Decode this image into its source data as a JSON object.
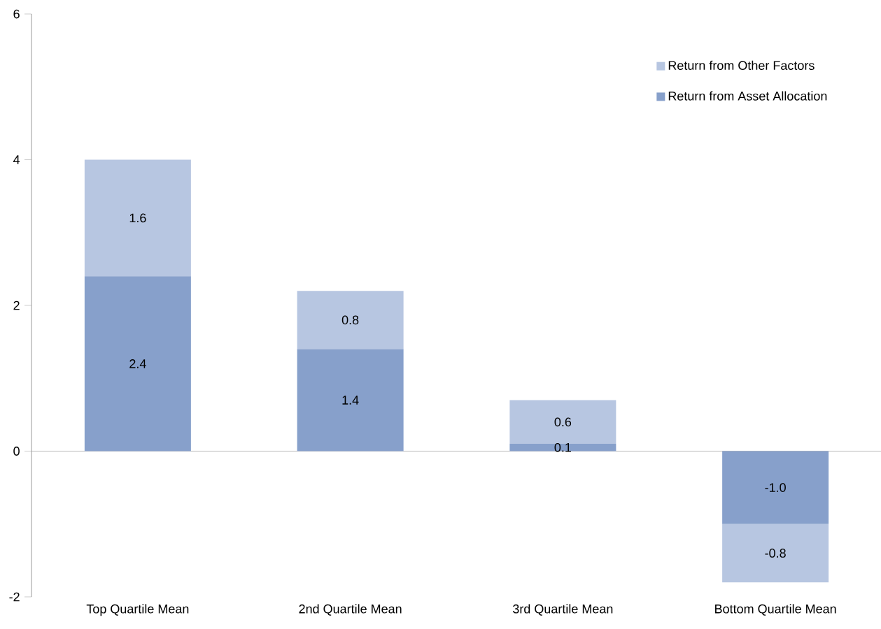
{
  "chart_data": {
    "type": "bar",
    "stacked": true,
    "categories": [
      "Top Quartile Mean",
      "2nd Quartile Mean",
      "3rd Quartile Mean",
      "Bottom Quartile Mean"
    ],
    "series": [
      {
        "name": "Return from Asset Allocation",
        "color": "#87a0cb",
        "values": [
          2.4,
          1.4,
          0.1,
          -1.0
        ],
        "value_labels": [
          "2.4",
          "1.4",
          "0.1",
          "-1.0"
        ]
      },
      {
        "name": "Return from Other Factors",
        "color": "#b7c6e1",
        "values": [
          1.6,
          0.8,
          0.6,
          -0.8
        ],
        "value_labels": [
          "1.6",
          "0.8",
          "0.6",
          "-0.8"
        ]
      }
    ],
    "ref_lines": [
      {
        "axis": "y",
        "value": 0,
        "color": "#a6a6a6"
      }
    ],
    "ylim": [
      -2,
      6
    ],
    "yticks": [
      -2,
      0,
      2,
      4,
      6
    ],
    "legend": "top right",
    "grid": false
  }
}
